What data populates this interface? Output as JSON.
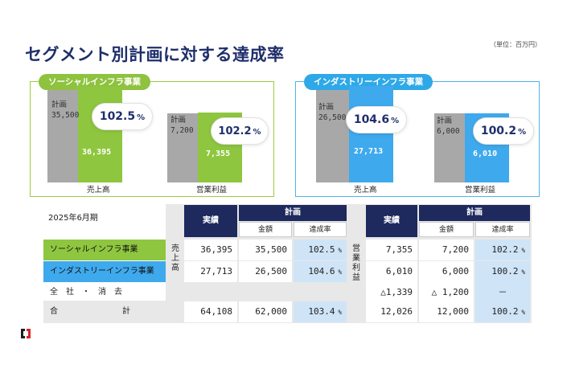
{
  "title": "セグメント別計画に対する達成率",
  "unit": "（単位：百万円）",
  "colors": {
    "navy": "#1e2a5e",
    "social_green": "#8ec63f",
    "infra_blue": "#3fa9ed",
    "plan_gray": "#a8a8a8",
    "rate_bg": "#cfe4f7"
  },
  "panels": {
    "social": {
      "label": "ソーシャルインフラ事業",
      "sales": {
        "plan_label": "計画",
        "plan_value": "35,500",
        "actual_value": "36,395",
        "rate": "102.5",
        "pct": "%",
        "axis": "売上高"
      },
      "profit": {
        "plan_label": "計画",
        "plan_value": "7,200",
        "actual_value": "7,355",
        "rate": "102.2",
        "pct": "%",
        "axis": "営業利益"
      }
    },
    "infra": {
      "label": "インダストリーインフラ事業",
      "sales": {
        "plan_label": "計画",
        "plan_value": "26,500",
        "actual_value": "27,713",
        "rate": "104.6",
        "pct": "%",
        "axis": "売上高"
      },
      "profit": {
        "plan_label": "計画",
        "plan_value": "6,000",
        "actual_value": "6,010",
        "rate": "100.2",
        "pct": "%",
        "axis": "営業利益"
      }
    }
  },
  "table": {
    "period": "2025年6月期",
    "headers": {
      "actual": "実績",
      "plan": "計画",
      "amount": "金額",
      "rate": "達成率"
    },
    "group_labels": {
      "sales": "売上高",
      "profit": "営業利益"
    },
    "pct": "%",
    "rows": [
      {
        "label": "ソーシャルインフラ事業",
        "sales_actual": "36,395",
        "sales_plan": "35,500",
        "sales_rate": "102.5",
        "profit_actual": "7,355",
        "profit_plan": "7,200",
        "profit_rate": "102.2"
      },
      {
        "label": "インダストリーインフラ事業",
        "sales_actual": "27,713",
        "sales_plan": "26,500",
        "sales_rate": "104.6",
        "profit_actual": "6,010",
        "profit_plan": "6,000",
        "profit_rate": "100.2"
      },
      {
        "label": "全　社　・　消　去",
        "profit_actual": "△1,339",
        "profit_plan": "△ 1,200",
        "profit_rate": "－"
      },
      {
        "label": "合　　　　　　　　計",
        "sales_actual": "64,108",
        "sales_plan": "62,000",
        "sales_rate": "103.4",
        "profit_actual": "12,026",
        "profit_plan": "12,000",
        "profit_rate": "100.2"
      }
    ]
  }
}
